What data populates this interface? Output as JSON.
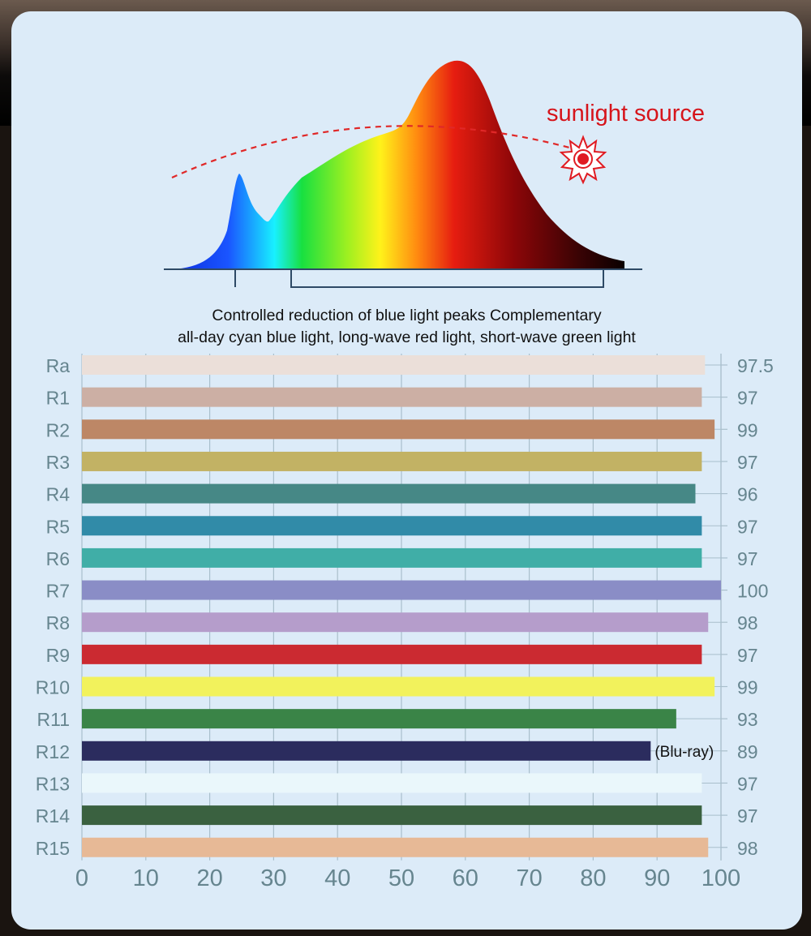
{
  "spectrum": {
    "sun_label": "sunlight source",
    "caption_line1": "Controlled reduction of blue light peaks Complementary",
    "caption_line2": "all-day cyan blue light, long-wave red light, short-wave green light",
    "sun_color": "#e01b22",
    "arc_color": "#e02828"
  },
  "chart_data": {
    "type": "bar",
    "orientation": "horizontal",
    "categories": [
      "Ra",
      "R1",
      "R2",
      "R3",
      "R4",
      "R5",
      "R6",
      "R7",
      "R8",
      "R9",
      "R10",
      "R11",
      "R12",
      "R13",
      "R14",
      "R15"
    ],
    "values": [
      97.5,
      97,
      99,
      97,
      96,
      97,
      97,
      100,
      98,
      97,
      99,
      93,
      89,
      97,
      97,
      98
    ],
    "value_labels": [
      "97.5",
      "97",
      "99",
      "97",
      "96",
      "97",
      "97",
      "100",
      "98",
      "97",
      "99",
      "93",
      "89",
      "97",
      "97",
      "98"
    ],
    "bar_annotations": {
      "R12": "(Blu-ray)"
    },
    "bar_colors": [
      "#ebdfd9",
      "#ccafa4",
      "#bd8766",
      "#c2b264",
      "#468886",
      "#318ba8",
      "#40aea7",
      "#8a8dc6",
      "#b59dcb",
      "#cb2a31",
      "#f2f25c",
      "#3a8447",
      "#2b2c5e",
      "#eaf7fb",
      "#3a6140",
      "#e7b996"
    ],
    "xticks": [
      "0",
      "10",
      "20",
      "30",
      "40",
      "50",
      "60",
      "70",
      "80",
      "90",
      "100"
    ],
    "xlim": [
      0,
      100
    ],
    "grid": true,
    "label_color": "#66858f"
  }
}
